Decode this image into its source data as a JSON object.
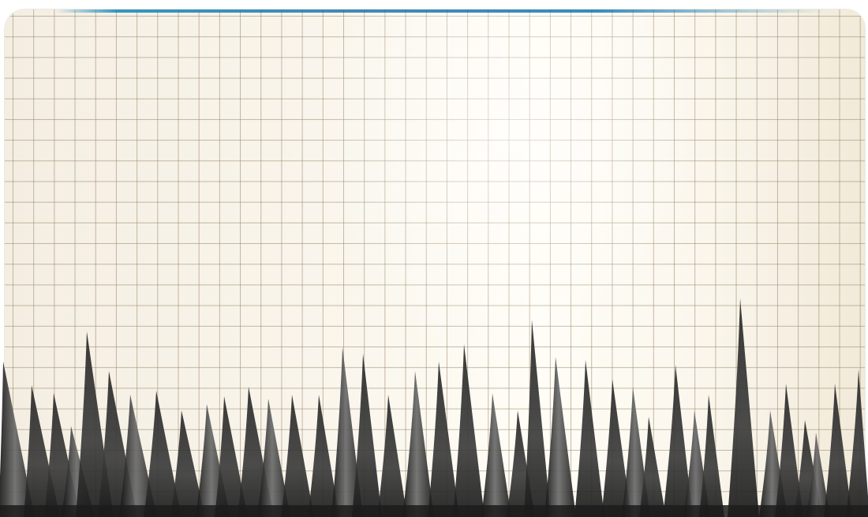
{
  "scene": {
    "subject": "graph-paper-with-ink-spikes",
    "colors": {
      "paper": "#faf6ed",
      "grid_line": "#968264",
      "ink_dark": "#141414",
      "ink_mid": "#5a5a5a",
      "edge_ink": "#1e8cbe"
    }
  }
}
